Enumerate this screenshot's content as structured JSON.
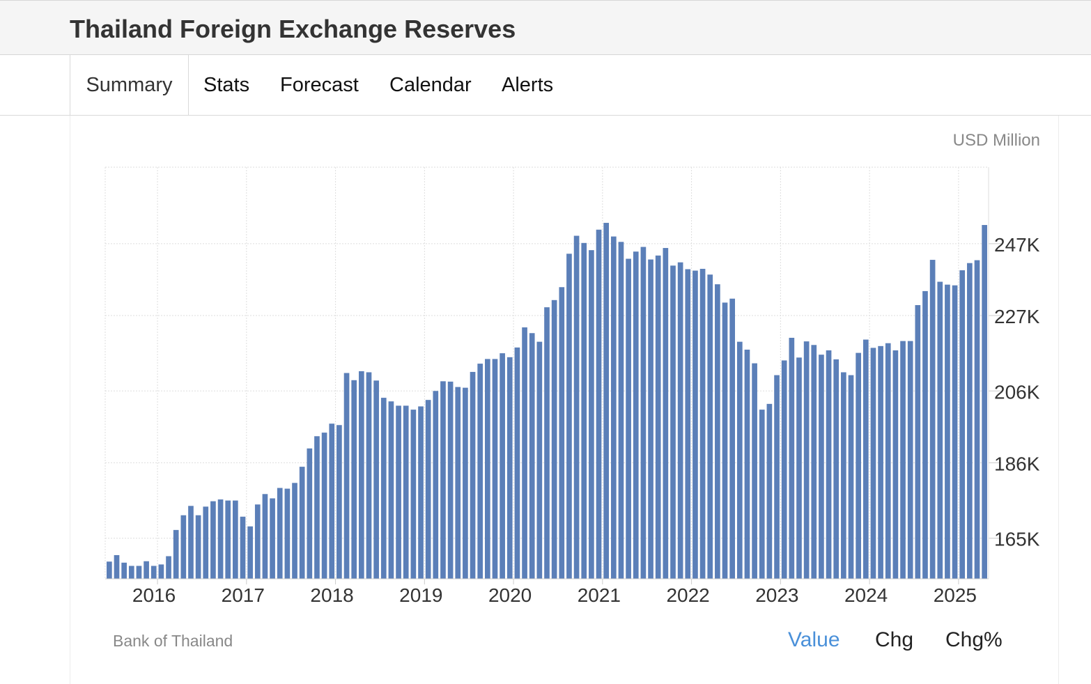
{
  "header": {
    "title": "Thailand Foreign Exchange Reserves"
  },
  "tabs": [
    {
      "label": "Summary",
      "active": true
    },
    {
      "label": "Stats",
      "active": false
    },
    {
      "label": "Forecast",
      "active": false
    },
    {
      "label": "Calendar",
      "active": false
    },
    {
      "label": "Alerts",
      "active": false
    }
  ],
  "footer": {
    "source": "Bank of Thailand",
    "views": [
      {
        "label": "Value",
        "active": true
      },
      {
        "label": "Chg",
        "active": false
      },
      {
        "label": "Chg%",
        "active": false
      }
    ]
  },
  "colors": {
    "bar": "#5b7fb8",
    "active_link": "#4a90d9",
    "grid": "#dddddd"
  },
  "chart_data": {
    "type": "bar",
    "unit": "USD Million",
    "x_start": "2015-06",
    "frequency": "monthly",
    "yticks": [
      165000,
      186000,
      206000,
      227000,
      247000
    ],
    "ytick_labels": [
      "165K",
      "186K",
      "206K",
      "227K",
      "247K"
    ],
    "ylim": [
      153700,
      268300
    ],
    "xticks": [
      "2016",
      "2017",
      "2018",
      "2019",
      "2020",
      "2021",
      "2022",
      "2023",
      "2024",
      "2025"
    ],
    "grid": true,
    "values": [
      158500,
      160300,
      158200,
      157300,
      157300,
      158600,
      157300,
      157700,
      160000,
      167300,
      171400,
      174000,
      171400,
      173800,
      175300,
      175800,
      175500,
      175500,
      171000,
      168300,
      174400,
      177300,
      176100,
      179000,
      178800,
      180400,
      184900,
      190000,
      193400,
      194400,
      196900,
      196500,
      211000,
      209000,
      211500,
      211200,
      208900,
      204100,
      203100,
      201900,
      201900,
      200800,
      201700,
      203500,
      206000,
      208700,
      208600,
      207100,
      206900,
      211300,
      213600,
      214900,
      214900,
      216500,
      215400,
      218100,
      223700,
      222100,
      219700,
      229300,
      231300,
      234900,
      244200,
      249200,
      247200,
      245200,
      250900,
      252800,
      249000,
      247500,
      242800,
      244800,
      246100,
      242600,
      243700,
      245800,
      240900,
      241800,
      239900,
      239500,
      240000,
      238400,
      235700,
      230600,
      231700,
      219700,
      217500,
      213700,
      200800,
      202400,
      210400,
      214500,
      220800,
      215300,
      219800,
      218800,
      216100,
      217300,
      214800,
      211200,
      210400,
      216600,
      220300,
      218000,
      218500,
      219300,
      217300,
      219900,
      219900,
      229900,
      233800,
      242500,
      236400,
      235600,
      235400,
      239600,
      241600,
      242400,
      252200
    ]
  }
}
